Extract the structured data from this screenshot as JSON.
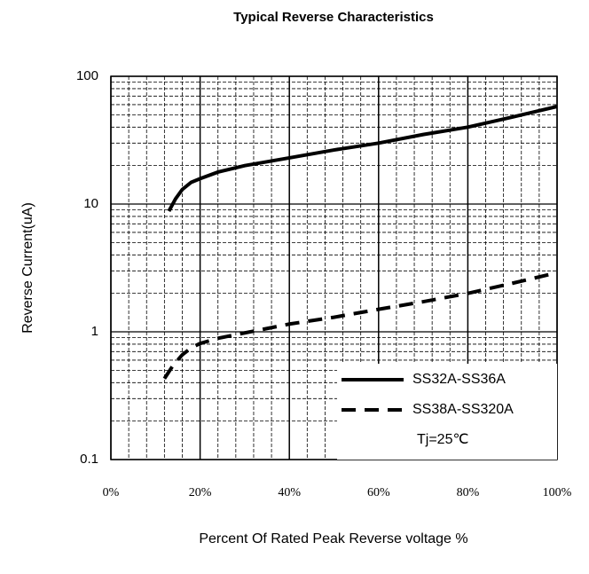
{
  "chart_data": {
    "type": "line",
    "title": "Typical Reverse Characteristics",
    "x_label": "Percent Of Rated Peak Reverse voltage %",
    "y_label": "Reverse Current(uA)",
    "xlim": [
      0,
      100
    ],
    "xticks": [
      {
        "value": 0,
        "label": "0%"
      },
      {
        "value": 20,
        "label": "20%"
      },
      {
        "value": 40,
        "label": "40%"
      },
      {
        "value": 60,
        "label": "60%"
      },
      {
        "value": 80,
        "label": "80%"
      },
      {
        "value": 100,
        "label": "100%"
      }
    ],
    "ylim": [
      0.1,
      100
    ],
    "yticks": [
      0.1,
      1,
      10,
      100
    ],
    "y_scale": "log",
    "grid": true,
    "legend": "lower right",
    "annotation": "Tj=25℃",
    "series": [
      {
        "name": "SS32A-SS36A",
        "color": "#000000",
        "style": "solid",
        "x": [
          13,
          14.5,
          16,
          18,
          20,
          24,
          30,
          40,
          50,
          60,
          70,
          80,
          90,
          100
        ],
        "values": [
          8.8,
          11,
          13,
          14.8,
          15.8,
          17.8,
          20,
          23,
          26.5,
          30,
          35,
          40,
          48,
          58
        ]
      },
      {
        "name": "SS38A-SS320A",
        "color": "#000000",
        "style": "dashed",
        "x": [
          12,
          14,
          16,
          18,
          20,
          24,
          30,
          40,
          50,
          60,
          70,
          80,
          90,
          100
        ],
        "values": [
          0.43,
          0.55,
          0.66,
          0.75,
          0.81,
          0.89,
          0.98,
          1.15,
          1.3,
          1.5,
          1.72,
          2.0,
          2.4,
          2.9
        ]
      }
    ]
  }
}
